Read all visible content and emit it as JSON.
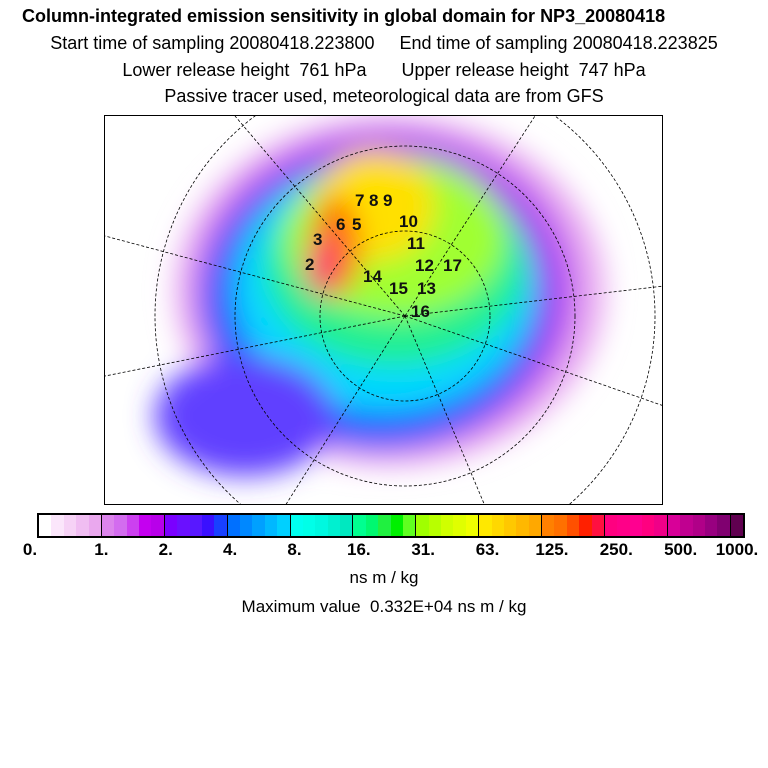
{
  "header": {
    "title": "Column-integrated emission sensitivity in global domain for NP3_20080418",
    "line2": "Start time of sampling 20080418.223800     End time of sampling 20080418.223825",
    "line3": "Lower release height  761 hPa       Upper release height  747 hPa",
    "line4": "Passive tracer used, meteorological data are from GFS"
  },
  "map": {
    "point_labels": [
      "2",
      "3",
      "6",
      "5",
      "7",
      "8",
      "9",
      "10",
      "11",
      "12",
      "13",
      "14",
      "15",
      "16",
      "17"
    ]
  },
  "colorbar": {
    "tick_labels": [
      "0.",
      "1.",
      "2.",
      "4.",
      "8.",
      "16.",
      "31.",
      "63.",
      "125.",
      "250.",
      "500.",
      "1000."
    ],
    "unit": "ns m / kg",
    "colors": [
      "#ffffff",
      "#fbe6fb",
      "#f6d2f6",
      "#f0bdf2",
      "#eaa8ee",
      "#dc84ec",
      "#d36cef",
      "#cc40f0",
      "#c400f0",
      "#b800ea",
      "#7a00ff",
      "#6a10ff",
      "#5818ff",
      "#3a10ff",
      "#1840ff",
      "#0070ff",
      "#0088ff",
      "#00a0ff",
      "#00b8ff",
      "#00d0ff",
      "#00fff0",
      "#00ffe8",
      "#00f8e0",
      "#00f0d0",
      "#00e8c0",
      "#00ff90",
      "#00f870",
      "#20f040",
      "#00f000",
      "#60ff20",
      "#a0ff00",
      "#b8ff00",
      "#d0ff00",
      "#e0ff00",
      "#f0ff00",
      "#ffe800",
      "#ffd800",
      "#ffc800",
      "#ffb800",
      "#ffa800",
      "#ff8000",
      "#ff7000",
      "#ff5000",
      "#ff2000",
      "#ff1040",
      "#ff0080",
      "#ff0088",
      "#ff0090",
      "#ff0080",
      "#f00088",
      "#d80098",
      "#c00090",
      "#b00088",
      "#980080",
      "#800070",
      "#600050"
    ]
  },
  "footer": {
    "max_value": "Maximum value  0.332E+04 ns m / kg"
  }
}
